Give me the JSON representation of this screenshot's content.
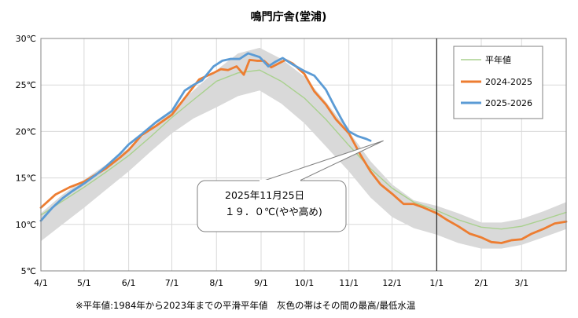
{
  "chart_data": {
    "type": "line",
    "title": "鳴門庁舎(堂浦)",
    "xlabel": "",
    "ylabel": "",
    "x_ticks": [
      "4/1",
      "5/1",
      "6/1",
      "7/1",
      "8/1",
      "9/1",
      "10/1",
      "11/1",
      "12/1",
      "1/1",
      "2/1",
      "3/1"
    ],
    "y_ticks": [
      "5℃",
      "10℃",
      "15℃",
      "20℃",
      "25℃",
      "30℃"
    ],
    "ylim": [
      5,
      30
    ],
    "x_unit": "days since Apr 1",
    "xlim": [
      0,
      365
    ],
    "today_line_day": 275,
    "grid": true,
    "legend_position": "top-right",
    "band": {
      "name": "最高/最低水温の範囲",
      "x": [
        0,
        15,
        30,
        45,
        61,
        76,
        91,
        106,
        122,
        137,
        152,
        167,
        183,
        198,
        214,
        229,
        244,
        259,
        275,
        290,
        306,
        320,
        334,
        349,
        365
      ],
      "upper": [
        11.2,
        13.2,
        14.8,
        16.4,
        18.2,
        20.2,
        22.3,
        24.4,
        26.6,
        28.4,
        29.0,
        27.8,
        25.9,
        23.2,
        20.0,
        16.8,
        14.3,
        12.6,
        12.0,
        11.2,
        10.2,
        10.2,
        10.6,
        11.4,
        12.4
      ],
      "lower": [
        8.2,
        10.0,
        11.8,
        13.7,
        15.7,
        17.8,
        19.8,
        21.4,
        22.6,
        23.8,
        24.4,
        23.0,
        20.9,
        18.4,
        15.7,
        12.9,
        10.8,
        9.6,
        8.9,
        8.0,
        7.4,
        7.4,
        7.8,
        8.6,
        9.5
      ]
    },
    "series": [
      {
        "name": "平年値",
        "color": "#a9d18e",
        "x": [
          0,
          15,
          30,
          45,
          61,
          76,
          91,
          106,
          122,
          137,
          152,
          167,
          183,
          198,
          214,
          229,
          244,
          259,
          275,
          290,
          306,
          320,
          334,
          349,
          365
        ],
        "values": [
          11.0,
          12.5,
          14.0,
          15.6,
          17.4,
          19.4,
          21.5,
          23.4,
          25.4,
          26.3,
          26.6,
          25.4,
          23.6,
          21.3,
          18.5,
          16.0,
          13.9,
          12.4,
          11.5,
          10.5,
          9.7,
          9.5,
          9.8,
          10.5,
          11.3
        ]
      },
      {
        "name": "2024-2025",
        "color": "#ed7d31",
        "x": [
          0,
          10,
          20,
          30,
          45,
          55,
          61,
          70,
          80,
          91,
          100,
          110,
          120,
          125,
          130,
          136,
          141,
          145,
          150,
          155,
          160,
          165,
          170,
          175,
          183,
          190,
          198,
          205,
          214,
          222,
          229,
          236,
          244,
          252,
          259,
          266,
          275,
          282,
          290,
          298,
          306,
          313,
          320,
          327,
          334,
          341,
          349,
          357,
          365
        ],
        "values": [
          11.8,
          13.2,
          14.0,
          14.6,
          16.0,
          17.2,
          18.0,
          19.6,
          20.6,
          21.8,
          23.6,
          25.6,
          26.3,
          26.7,
          26.6,
          27.0,
          26.1,
          27.7,
          27.6,
          27.6,
          26.9,
          27.3,
          27.7,
          27.3,
          26.2,
          24.3,
          22.9,
          21.3,
          19.8,
          17.5,
          15.7,
          14.3,
          13.3,
          12.2,
          12.2,
          11.8,
          11.2,
          10.5,
          9.8,
          9.0,
          8.6,
          8.1,
          8.0,
          8.3,
          8.4,
          9.0,
          9.5,
          10.1,
          10.3
        ]
      },
      {
        "name": "2025-2026",
        "color": "#5b9bd5",
        "x": [
          0,
          8,
          15,
          22,
          30,
          38,
          45,
          55,
          61,
          70,
          80,
          91,
          100,
          106,
          112,
          120,
          126,
          132,
          138,
          144,
          148,
          152,
          158,
          163,
          168,
          175,
          183,
          190,
          198,
          204,
          210,
          214,
          220,
          226,
          229
        ],
        "values": [
          10.4,
          11.8,
          12.8,
          13.6,
          14.4,
          15.3,
          16.2,
          17.6,
          18.6,
          19.7,
          21.0,
          22.2,
          24.4,
          25.0,
          25.5,
          27.0,
          27.6,
          27.8,
          27.8,
          28.4,
          28.2,
          28.0,
          27.0,
          27.5,
          27.9,
          27.2,
          26.5,
          26.0,
          24.5,
          22.7,
          21.0,
          20.0,
          19.5,
          19.2,
          19.0
        ]
      }
    ],
    "legend": [
      "平年値",
      "2024-2025",
      "2025-2026"
    ],
    "annotation": {
      "line1": "2025年11月25日",
      "line2": "１９．０℃(やや高め)",
      "target_day": 238,
      "target_value": 19.0
    },
    "footnote": "※平年値:1984年から2023年までの平滑平年値　灰色の帯はその間の最高/最低水温"
  }
}
